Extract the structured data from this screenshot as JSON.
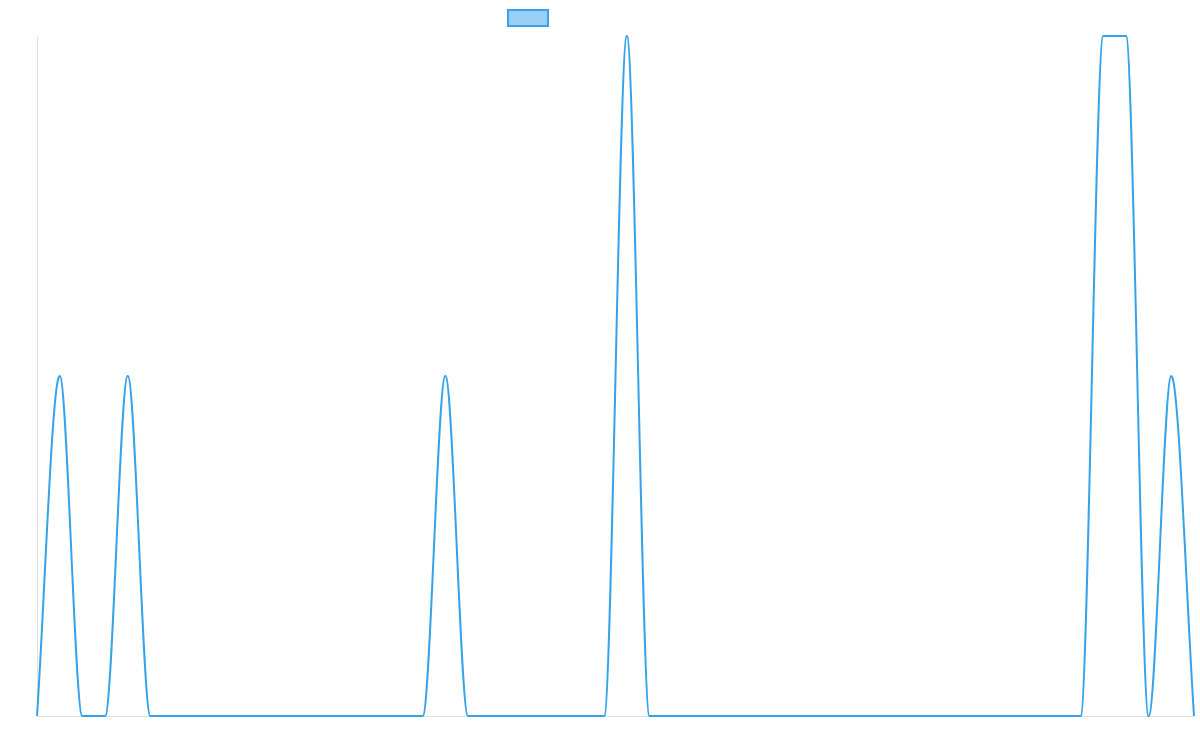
{
  "chart_data": {
    "type": "line",
    "title": "",
    "xlabel": "",
    "ylabel": "",
    "legend": {
      "placement": "top-center",
      "swatch_fill": "#9ad0f5",
      "swatch_stroke": "#36a2eb"
    },
    "colors": {
      "line": "#36a2eb",
      "axis": "#e0e0e0"
    },
    "grid": false,
    "x": [
      0,
      1,
      2,
      3,
      4,
      5,
      6,
      7,
      8,
      9,
      10,
      11,
      12,
      13,
      14,
      15,
      16,
      17,
      18,
      19,
      20,
      21,
      22,
      23,
      24,
      25,
      26,
      27,
      28,
      29,
      30,
      31,
      32,
      33,
      34,
      35,
      36,
      37,
      38,
      39,
      40,
      41,
      42,
      43,
      44,
      45,
      46,
      47,
      48,
      49,
      50,
      51
    ],
    "xlim": [
      0,
      51
    ],
    "ylim": [
      0,
      2
    ],
    "series": [
      {
        "values": [
          0,
          1,
          0,
          0,
          1,
          0,
          0,
          0,
          0,
          0,
          0,
          0,
          0,
          0,
          0,
          0,
          0,
          0,
          1,
          0,
          0,
          0,
          0,
          0,
          0,
          0,
          2,
          0,
          0,
          0,
          0,
          0,
          0,
          0,
          0,
          0,
          0,
          0,
          0,
          0,
          0,
          0,
          0,
          0,
          0,
          0,
          0,
          2,
          2,
          0,
          1,
          0
        ]
      }
    ]
  }
}
